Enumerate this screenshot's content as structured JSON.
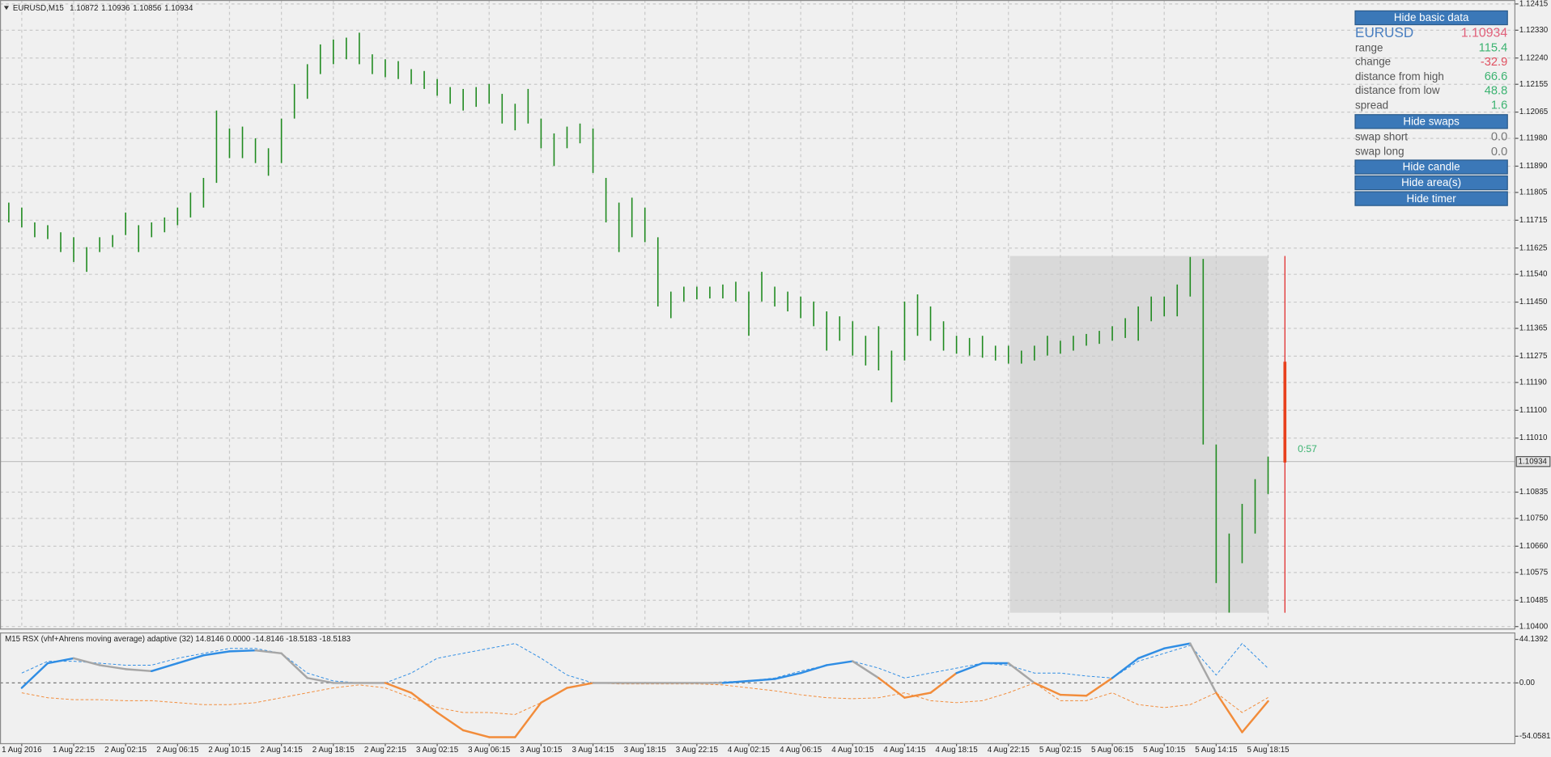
{
  "header": {
    "symbol": "EURUSD,M15",
    "ohlc": [
      1.10872,
      1.10936,
      1.10856,
      1.10934
    ]
  },
  "chart_data": [
    {
      "type": "hilo",
      "color": "#1f8a1f",
      "grid": true,
      "current_price": 1.10934,
      "categories": [
        null,
        "1 Aug 2016",
        null,
        null,
        null,
        "1 Aug 22:15",
        null,
        null,
        null,
        "2 Aug 02:15",
        null,
        null,
        null,
        "2 Aug 06:15",
        null,
        null,
        null,
        "2 Aug 10:15",
        null,
        null,
        null,
        "2 Aug 14:15",
        null,
        null,
        null,
        "2 Aug 18:15",
        null,
        null,
        null,
        "2 Aug 22:15",
        null,
        null,
        null,
        "3 Aug 02:15",
        null,
        null,
        null,
        "3 Aug 06:15",
        null,
        null,
        null,
        "3 Aug 10:15",
        null,
        null,
        null,
        "3 Aug 14:15",
        null,
        null,
        null,
        "3 Aug 18:15",
        null,
        null,
        null,
        "3 Aug 22:15",
        null,
        null,
        null,
        "4 Aug 02:15",
        null,
        null,
        null,
        "4 Aug 06:15",
        null,
        null,
        null,
        "4 Aug 10:15",
        null,
        null,
        null,
        "4 Aug 14:15",
        null,
        null,
        null,
        "4 Aug 18:15",
        null,
        null,
        null,
        "4 Aug 22:15",
        null,
        null,
        null,
        "5 Aug 02:15",
        null,
        null,
        null,
        "5 Aug 06:15",
        null,
        null,
        null,
        "5 Aug 10:15",
        null,
        null,
        null,
        "5 Aug 14:15",
        null,
        null,
        null,
        "5 Aug 18:15"
      ],
      "high": [
        1.11772,
        1.11756,
        1.11708,
        1.11699,
        1.11676,
        1.1166,
        1.11628,
        1.1166,
        1.11667,
        1.1174,
        1.11699,
        1.11708,
        1.11724,
        1.11756,
        1.11804,
        1.11852,
        1.1207,
        1.12012,
        1.12018,
        1.1198,
        1.11948,
        1.12044,
        1.12156,
        1.1222,
        1.12284,
        1.123,
        1.12306,
        1.12322,
        1.12252,
        1.12236,
        1.1223,
        1.12204,
        1.12198,
        1.12172,
        1.12146,
        1.1214,
        1.12146,
        1.12156,
        1.12124,
        1.12092,
        1.1214,
        1.12044,
        1.11996,
        1.12018,
        1.12028,
        1.12012,
        1.11852,
        1.11772,
        1.11788,
        1.11756,
        1.1166,
        1.11484,
        1.115,
        1.115,
        1.115,
        1.11507,
        1.11516,
        1.11484,
        1.11548,
        1.115,
        1.11484,
        1.11468,
        1.11452,
        1.1142,
        1.11404,
        1.11388,
        1.11341,
        1.11372,
        1.11293,
        1.11452,
        1.11475,
        1.11436,
        1.11388,
        1.11341,
        1.11334,
        1.11341,
        1.11309,
        1.11309,
        1.11293,
        1.11309,
        1.11341,
        1.11325,
        1.11341,
        1.11347,
        1.11357,
        1.11372,
        1.11398,
        1.11436,
        1.11468,
        1.11468,
        1.11507,
        1.11596,
        1.1159,
        1.10989,
        1.10701,
        1.10797,
        1.10877,
        1.1095
      ],
      "low": [
        1.11708,
        1.11692,
        1.1166,
        1.11654,
        1.11612,
        1.1158,
        1.11548,
        1.11612,
        1.11628,
        1.11667,
        1.11612,
        1.1166,
        1.11676,
        1.11699,
        1.11724,
        1.11756,
        1.11836,
        1.11916,
        1.11916,
        1.119,
        1.11859,
        1.119,
        1.12044,
        1.12108,
        1.12188,
        1.1222,
        1.12236,
        1.1222,
        1.12188,
        1.12178,
        1.12172,
        1.12156,
        1.1214,
        1.12118,
        1.12092,
        1.1207,
        1.12082,
        1.12092,
        1.12028,
        1.12006,
        1.12028,
        1.11948,
        1.11891,
        1.11948,
        1.11964,
        1.11868,
        1.11708,
        1.11612,
        1.1166,
        1.11644,
        1.11436,
        1.11398,
        1.11452,
        1.11459,
        1.11462,
        1.11462,
        1.11452,
        1.11341,
        1.11452,
        1.11436,
        1.1142,
        1.11398,
        1.11372,
        1.11293,
        1.11325,
        1.11277,
        1.11245,
        1.11229,
        1.11126,
        1.11261,
        1.11341,
        1.11325,
        1.11293,
        1.11283,
        1.11277,
        1.1127,
        1.11261,
        1.11251,
        1.11251,
        1.11261,
        1.11277,
        1.11283,
        1.11293,
        1.11309,
        1.11315,
        1.11325,
        1.11334,
        1.11325,
        1.11388,
        1.11404,
        1.11404,
        1.11468,
        1.10989,
        1.10541,
        1.10445,
        1.10605,
        1.10701,
        1.10829
      ],
      "ylim": [
        1.104,
        1.12415
      ],
      "yticks": [
        1.12415,
        {
          "value": 1.1233,
          "label": "1.12330"
        },
        {
          "value": 1.1224,
          "label": "1.12240"
        },
        1.12155,
        1.12065,
        {
          "value": 1.1198,
          "label": "1.11980"
        },
        {
          "value": 1.1189,
          "label": "1.11890"
        },
        1.11805,
        1.11715,
        1.11625,
        {
          "value": 1.1154,
          "label": "1.11540"
        },
        {
          "value": 1.1145,
          "label": "1.11450"
        },
        1.11365,
        1.11275,
        {
          "value": 1.1119,
          "label": "1.11190"
        },
        {
          "value": 1.111,
          "label": "1.11100"
        },
        {
          "value": 1.1101,
          "label": "1.11010"
        },
        1.10835,
        {
          "value": 1.1075,
          "label": "1.10750"
        },
        {
          "value": 1.1066,
          "label": "1.10660"
        },
        1.10575,
        1.10485,
        {
          "value": 1.104,
          "label": "1.10400"
        }
      ]
    },
    {
      "type": "line",
      "title": "M15 RSX (vhf+Ahrens moving average) adaptive (32) 14.8146 0.0000 -14.8146 -18.5183 -18.5183",
      "ylim": [
        -54.0581,
        44.1392
      ],
      "yticks": [
        44.1392,
        {
          "value": 0,
          "label": "0.00"
        },
        -54.0581
      ],
      "series": [
        {
          "color": "#2f8de4",
          "dashed": true,
          "values": [
            10,
            22,
            22,
            20,
            18,
            18,
            25,
            30,
            35,
            35,
            30,
            10,
            2,
            0,
            0,
            10,
            25,
            30,
            35,
            40,
            25,
            8,
            0,
            0,
            0,
            0,
            0,
            1,
            2,
            5,
            12,
            18,
            22,
            15,
            5,
            10,
            15,
            20,
            18,
            10,
            10,
            7,
            5,
            22,
            30,
            38,
            8,
            40,
            14.8146
          ]
        },
        {
          "color": "#f28c3a",
          "dashed": true,
          "values": [
            -10,
            -15,
            -17,
            -17,
            -18,
            -18,
            -20,
            -22,
            -22,
            -20,
            -15,
            -10,
            -5,
            -2,
            -5,
            -15,
            -25,
            -30,
            -30,
            -32,
            -20,
            -5,
            0,
            -1,
            -1,
            -1,
            -1,
            -2,
            -5,
            -8,
            -12,
            -15,
            -16,
            -15,
            -10,
            -18,
            -20,
            -18,
            -10,
            0,
            -18,
            -18,
            -10,
            -22,
            -25,
            -22,
            -10,
            -30,
            -14.8146
          ]
        },
        {
          "color": "#2f8de4",
          "down_color": "#f28c3a",
          "neutral_color": "#a6a6a6",
          "dashed": false,
          "values": [
            -5,
            20,
            25,
            18,
            14,
            12,
            20,
            28,
            32,
            33,
            30,
            5,
            0,
            0,
            0,
            -10,
            -30,
            -48,
            -55,
            -55,
            -20,
            -5,
            0,
            0,
            0,
            0,
            0,
            0,
            2,
            4,
            10,
            18,
            22,
            5,
            -15,
            -10,
            10,
            20,
            20,
            0,
            -12,
            -13,
            5,
            25,
            35,
            40,
            -10,
            -50,
            -18.5183
          ]
        }
      ]
    }
  ],
  "timer": "0:57",
  "panel": {
    "buttons": [
      "Hide basic data",
      "Hide swaps",
      "Hide candle",
      "Hide area(s)",
      "Hide timer"
    ],
    "symbol": "EURUSD",
    "price": 1.10934,
    "rows": [
      {
        "label": "range",
        "value": 115.4
      },
      {
        "label": "change",
        "value": -32.9
      },
      {
        "label": "distance from high",
        "value": 66.6
      },
      {
        "label": "distance from low",
        "value": 48.8
      },
      {
        "label": "spread",
        "value": 1.6
      }
    ],
    "swaps": [
      {
        "label": "swap short",
        "value": 0,
        "value_label": "0.0"
      },
      {
        "label": "swap long",
        "value": 0,
        "value_label": "0.0"
      }
    ]
  }
}
